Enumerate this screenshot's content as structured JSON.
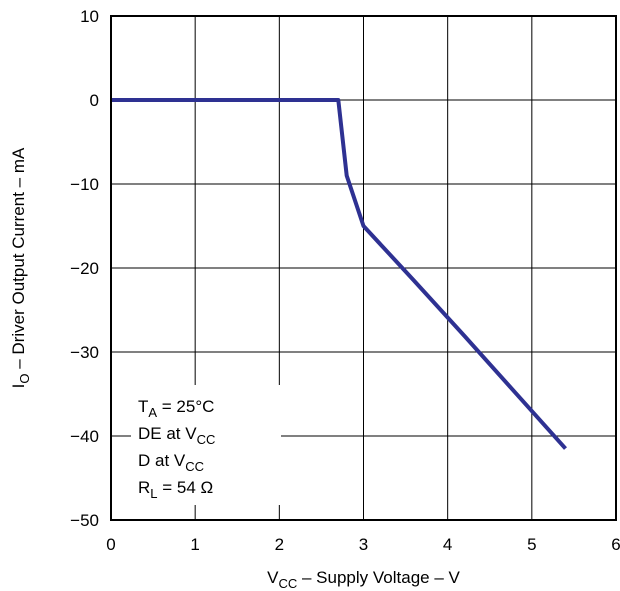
{
  "chart_data": {
    "type": "line",
    "xlabel": {
      "main": "V",
      "sub": "CC",
      "rest": " – Supply Voltage – V"
    },
    "ylabel": {
      "main": "I",
      "sub": "O",
      "rest": " – Driver Output Current – mA"
    },
    "xlim": [
      0,
      6
    ],
    "ylim": [
      -50,
      10
    ],
    "x_ticks": [
      "0",
      "1",
      "2",
      "3",
      "4",
      "5",
      "6"
    ],
    "y_ticks": [
      "10",
      "0",
      "−10",
      "−20",
      "−30",
      "−40",
      "−50"
    ],
    "grid": true,
    "series": [
      {
        "x": [
          0,
          2.7,
          2.8,
          3.0,
          3.6,
          4.2,
          4.8,
          5.4
        ],
        "y": [
          0,
          0,
          -9,
          -15,
          -21.5,
          -28.1,
          -34.8,
          -41.5
        ]
      }
    ],
    "annotation": {
      "lines": [
        {
          "main": "T",
          "sub": "A",
          "rest": " = 25°C"
        },
        {
          "main": "DE at V",
          "sub": "CC",
          "rest": ""
        },
        {
          "main": "D at V",
          "sub": "CC",
          "rest": ""
        },
        {
          "main": "R",
          "sub": "L",
          "rest": " = 54 Ω"
        }
      ]
    },
    "line_color": "#2e3192"
  }
}
